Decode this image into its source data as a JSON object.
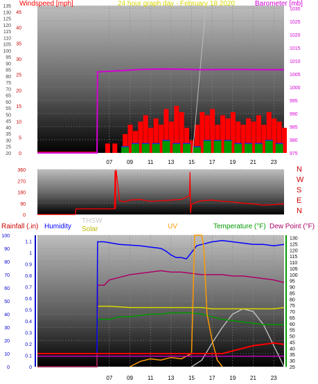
{
  "colors": {
    "wind": "#ff0000",
    "wind_hi": "#ff0000",
    "wind_avg": "#1a2bd8",
    "wind_low": "#009900",
    "barometer": "#d400d4",
    "title": "#d8d800",
    "thsw": "#c8c8c8",
    "solar": "#d8d800",
    "uv": "#ff9900",
    "rain": "#0000cc",
    "humidity": "#0000ff",
    "temperature": "#009900",
    "dewpoint": "#aa0066",
    "dir_label": "#cc0000",
    "axis_text": "#000000"
  },
  "chart_data": [
    {
      "type": "line",
      "title": "24 hour graph day - February 18 2020",
      "ylabel_left": "Windspeed [mph]",
      "ylabel_right": "Barometer [mb]",
      "left_ticks_mph": [
        0,
        5,
        10,
        15,
        20,
        25,
        30,
        35,
        40,
        45
      ],
      "left_ticks_kmh": [
        20,
        25,
        30,
        35,
        40,
        45,
        50,
        55,
        60,
        65,
        70,
        75,
        80,
        85,
        90,
        95,
        100,
        105,
        110,
        115,
        120,
        125,
        130,
        135
      ],
      "right_ticks": [
        975,
        980,
        985,
        990,
        995,
        1000,
        1005,
        1010,
        1015,
        1020,
        1025,
        1030
      ],
      "x_ticks": [
        "07",
        "09",
        "11",
        "13",
        "15",
        "17",
        "19",
        "21",
        "23"
      ],
      "ylim": [
        0,
        47
      ],
      "ylim_right": [
        975,
        1031
      ],
      "grid": true,
      "series": [
        {
          "name": "Windspeed",
          "key": "wind_gust",
          "x": [
            6.8,
            7.5,
            8.5,
            9.0,
            9.5,
            10.0,
            10.5,
            11.0,
            11.5,
            12.0,
            12.5,
            13.0,
            13.5,
            14.0,
            14.5,
            15.0,
            15.5,
            16.0,
            16.5,
            17.0,
            17.5,
            18.0,
            18.5,
            19.0,
            19.5,
            20.0,
            20.5,
            21.0,
            21.5,
            22.0,
            22.5,
            23.0,
            23.5,
            24.0
          ],
          "values": [
            3,
            3,
            6,
            9,
            7,
            10,
            12,
            8,
            11,
            9,
            14,
            10,
            15,
            13,
            8,
            4,
            9,
            13,
            12,
            14,
            9,
            12,
            11,
            13,
            10,
            9,
            11,
            10,
            12,
            9,
            13,
            11,
            10,
            8
          ]
        },
        {
          "name": "",
          "key": "wind_avg",
          "x": [
            8.5,
            9.5,
            10.5,
            11.5,
            12.5,
            13.5,
            14.5,
            15.5,
            16.5,
            17.5,
            18.5,
            19.5,
            20.5,
            21.5,
            22.5,
            23.5
          ],
          "values": [
            2,
            3,
            3,
            3,
            4,
            3,
            3,
            2,
            4,
            4,
            4,
            3,
            3,
            3,
            4,
            3
          ]
        },
        {
          "name": "Barometer",
          "key": "barometer",
          "x": [
            0,
            5.8,
            5.85,
            8,
            10,
            12,
            14,
            16,
            18,
            20,
            22,
            24
          ],
          "values": [
            975,
            975,
            1005.8,
            1006.2,
            1006.7,
            1006.9,
            1006.8,
            1006.6,
            1006.7,
            1006.7,
            1006.6,
            1006.6
          ]
        }
      ]
    },
    {
      "type": "line",
      "ylabel_left": "",
      "left_ticks": [
        0,
        90,
        180,
        270,
        360
      ],
      "direction_labels": [
        "N",
        "W",
        "S",
        "E",
        "N"
      ],
      "ylim": [
        0,
        360
      ],
      "grid": true,
      "series": [
        {
          "name": "",
          "key": "direction",
          "x": [
            0,
            3.7,
            3.75,
            7.5,
            7.55,
            7.6,
            7.65,
            8.0,
            8.5,
            9,
            10,
            11,
            12,
            13,
            14,
            14.8,
            14.85,
            14.9,
            15,
            15.5,
            16,
            17,
            18,
            19,
            20,
            21,
            22,
            23,
            24
          ],
          "values": [
            0,
            0,
            45,
            45,
            350,
            45,
            360,
            110,
            100,
            115,
            120,
            105,
            110,
            115,
            120,
            150,
            340,
            10,
            80,
            100,
            110,
            115,
            105,
            100,
            90,
            85,
            75,
            80,
            85
          ]
        }
      ]
    },
    {
      "type": "line",
      "labels": [
        "Rainfall (.in)",
        "Humidity",
        "THSW",
        "Solar",
        "UV",
        "Temperature (°F)",
        "Dew Point (°F)"
      ],
      "left_ticks_rain": [
        0,
        0.1,
        0.2,
        0.3,
        0.4,
        0.5,
        0.6,
        0.7,
        0.8,
        0.9,
        1,
        1.1
      ],
      "left_ticks_hum": [
        0,
        10,
        20,
        30,
        40,
        50,
        60,
        70,
        80,
        90,
        100
      ],
      "right_ticks": [
        25,
        30,
        35,
        40,
        45,
        50,
        55,
        60,
        65,
        70,
        75,
        80,
        85,
        90,
        95,
        100,
        105,
        110,
        115,
        120,
        125,
        130
      ],
      "x_ticks": [
        "07",
        "09",
        "11",
        "13",
        "15",
        "17",
        "19",
        "21",
        "23"
      ],
      "ylim": [
        0,
        100
      ],
      "grid": true,
      "series": [
        {
          "name": "Humidity",
          "key": "humidity",
          "x": [
            0,
            5.8,
            5.85,
            6.5,
            8,
            10,
            11,
            12,
            12.5,
            13,
            13.5,
            14,
            14.5,
            15,
            15.5,
            16,
            17,
            18,
            19,
            20,
            21,
            22,
            23,
            24
          ],
          "values": [
            10,
            10,
            95,
            95,
            93,
            92,
            91,
            90,
            88,
            85,
            83,
            83,
            82,
            87,
            92,
            93,
            95,
            96,
            95,
            94,
            93,
            93,
            92,
            93
          ]
        },
        {
          "name": "Temperature (°F)",
          "key": "temperature",
          "x": [
            0,
            5.8,
            5.85,
            6.5,
            7,
            8,
            9,
            10,
            11,
            12,
            13,
            14,
            15,
            16,
            17,
            18,
            19,
            20,
            21,
            22,
            23,
            24
          ],
          "values": [
            0,
            0,
            36,
            36,
            36,
            38,
            38,
            39,
            40,
            40,
            41,
            41,
            41,
            40,
            38,
            36,
            35,
            34,
            33,
            32,
            32,
            32
          ]
        },
        {
          "name": "Dew Point (°F)",
          "key": "dewpoint",
          "x": [
            0,
            5.8,
            5.85,
            6.5,
            7,
            8,
            9,
            10,
            11,
            12,
            13,
            14,
            15,
            16,
            17,
            18,
            19,
            20,
            21,
            22,
            23,
            24
          ],
          "values": [
            0,
            0,
            62,
            62,
            66,
            68,
            70,
            71,
            72,
            73,
            72,
            72,
            71,
            70,
            70,
            70,
            69,
            69,
            68,
            67,
            66,
            64
          ]
        },
        {
          "name": "THSW",
          "key": "thsw",
          "x": [
            15,
            16,
            17,
            18,
            19,
            20,
            21,
            22,
            23,
            24
          ],
          "values": [
            0,
            5,
            18,
            30,
            40,
            44,
            42,
            32,
            16,
            0
          ]
        },
        {
          "name": "Solar",
          "key": "solar",
          "x": [
            0,
            5.8,
            5.85,
            7,
            9,
            11,
            13,
            15,
            16,
            17,
            18,
            19,
            20,
            21,
            22,
            23,
            24
          ],
          "values": [
            0,
            0,
            46,
            46,
            45,
            45,
            45,
            45,
            45,
            44,
            44,
            44,
            44,
            44,
            44,
            44,
            45
          ]
        },
        {
          "name": "UV",
          "key": "uv",
          "x": [
            9,
            10,
            11,
            12,
            13,
            14,
            15,
            15.3,
            15.5,
            16,
            16.2,
            16.5,
            17,
            17.5,
            18
          ],
          "values": [
            0,
            4,
            6,
            5,
            7,
            6,
            10,
            100,
            100,
            100,
            90,
            40,
            20,
            5,
            0
          ]
        },
        {
          "name": "Rainfall (.in)",
          "key": "rainfall",
          "x": [
            0,
            18,
            19,
            20,
            21,
            22,
            23,
            24
          ],
          "values": [
            10,
            10,
            12,
            14,
            16,
            17,
            18,
            17
          ]
        }
      ]
    }
  ]
}
